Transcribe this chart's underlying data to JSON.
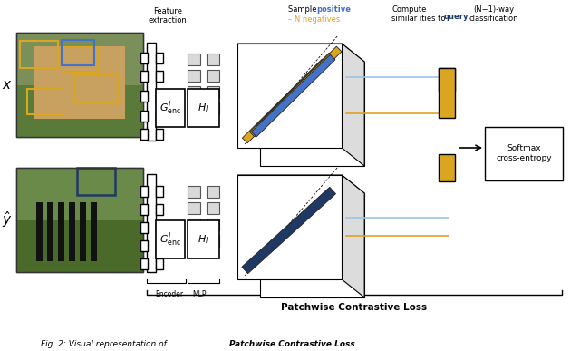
{
  "background_color": "#ffffff",
  "blue": "#4472C4",
  "light_blue": "#9DC3E6",
  "gold": "#DAA520",
  "navy": "#1F3864",
  "lgray": "#D9D9D9",
  "mgray": "#999999",
  "darkgray": "#404040",
  "x_label": "x",
  "y_hat_label": "$\\hat{y}$",
  "encoder_label": "Encoder",
  "mlp_label": "MLP",
  "patchwise_label": "Patchwise Contrastive Loss",
  "softmax_label": "Softmax\ncross-entropy",
  "g_enc_label": "$G^l_{\\mathrm{enc}}$",
  "h_l_label": "$H_l$",
  "feat_extract": "Feature\nextraction",
  "sample_text": "Sample ",
  "positive_text": "positive",
  "negative_text": "– N negatives",
  "compute_text": "Compute\nsimilar ities to ",
  "query_text": "query",
  "classif_text": "(N−1)-way\nclassification",
  "caption_normal": "Fig. 2: Visual representation of ",
  "caption_bold": "Patchwise Contrastive Loss"
}
